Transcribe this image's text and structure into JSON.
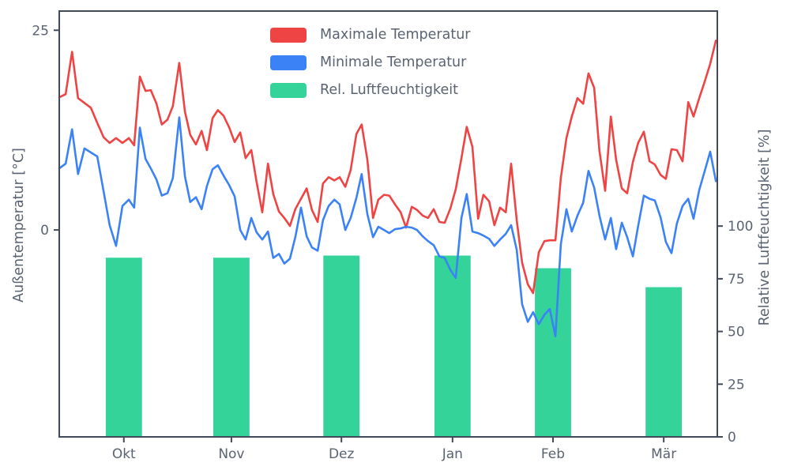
{
  "chart_data": {
    "type": "line+bar",
    "title": "",
    "x_axis": {
      "unit": "days since start of series (mid-September)",
      "tick_labels": [
        "Okt",
        "Nov",
        "Dez",
        "Jan",
        "Feb",
        "Mär"
      ],
      "tick_days": [
        18.2,
        48.5,
        79.5,
        110.8,
        139.1,
        170.3
      ],
      "range_days": [
        0,
        185.4
      ],
      "grid": false
    },
    "y_left": {
      "label": "Außentemperatur [°C]",
      "ticks": [
        0,
        25
      ],
      "range": [
        -25.9,
        27.4
      ]
    },
    "y_right": {
      "label": "Relative Luftfeuchtigkeit [%]",
      "ticks": [
        0,
        25,
        50,
        75,
        100
      ],
      "range": [
        0,
        202
      ]
    },
    "legend": [
      {
        "label": "Maximale Temperatur",
        "color": "#ef4444",
        "kind": "line"
      },
      {
        "label": "Minimale Temperatur",
        "color": "#3b82f6",
        "kind": "line"
      },
      {
        "label": "Rel. Luftfeuchtigkeit",
        "color": "#34d399",
        "kind": "bar"
      }
    ],
    "legend_position": "upper center, no frame",
    "series": {
      "days": [
        0,
        1.8,
        3.6,
        5.3,
        7.1,
        8.9,
        10.7,
        12.5,
        14.2,
        16,
        17.8,
        19.6,
        21.1,
        22.7,
        24.3,
        25.8,
        27.4,
        28.9,
        30.5,
        32,
        33.8,
        35.4,
        36.9,
        38.5,
        40.1,
        41.6,
        43.2,
        44.7,
        46.3,
        47.9,
        49.4,
        51,
        52.5,
        54.1,
        55.6,
        57.2,
        58.8,
        60.3,
        61.9,
        63.4,
        65,
        66.5,
        68.1,
        69.7,
        71.2,
        72.8,
        74.3,
        75.9,
        77.5,
        79,
        80.6,
        82.1,
        83.7,
        85.2,
        86.8,
        88.4,
        89.9,
        91.5,
        93,
        94.6,
        96.2,
        97.7,
        99.3,
        100.8,
        102.4,
        103.9,
        105.5,
        107.1,
        108.6,
        110.2,
        111.7,
        113.3,
        114.8,
        116.4,
        118,
        119.5,
        121.1,
        122.6,
        124.2,
        125.8,
        127.3,
        128.9,
        130.4,
        132,
        133.5,
        135.1,
        136.7,
        138.2,
        139.8,
        141.3,
        142.9,
        144.4,
        146,
        147.6,
        149.1,
        150.7,
        152.2,
        153.8,
        155.4,
        156.9,
        158.5,
        160,
        161.6,
        163.1,
        164.7,
        166.3,
        167.8,
        169.4,
        170.9,
        172.5,
        174,
        175.6,
        177.2,
        178.7,
        180.3,
        181.8,
        183.4,
        185
      ],
      "max_temp_c": [
        16.6,
        17.0,
        22.3,
        16.5,
        15.9,
        15.3,
        13.4,
        11.6,
        10.9,
        11.5,
        10.9,
        11.5,
        10.6,
        19.2,
        17.4,
        17.5,
        15.8,
        13.2,
        13.8,
        15.5,
        20.9,
        14.8,
        11.9,
        10.7,
        12.4,
        10.0,
        14.0,
        15.0,
        14.3,
        12.8,
        11.0,
        12.2,
        9.0,
        10.0,
        6.0,
        2.2,
        8.3,
        4.5,
        2.3,
        1.5,
        0.5,
        2.6,
        3.9,
        5.2,
        2.5,
        1.0,
        5.8,
        6.6,
        6.2,
        6.6,
        5.4,
        7.5,
        12.0,
        13.2,
        8.8,
        1.5,
        3.8,
        4.4,
        4.3,
        3.2,
        2.2,
        0.3,
        2.9,
        2.5,
        1.8,
        1.5,
        2.6,
        1.0,
        0.9,
        2.7,
        5.1,
        9.0,
        12.9,
        10.4,
        1.4,
        4.4,
        3.6,
        0.6,
        2.8,
        2.2,
        8.3,
        1.2,
        -4.1,
        -6.8,
        -7.9,
        -2.8,
        -1.4,
        -1.3,
        -1.3,
        6.5,
        11.5,
        14.2,
        16.5,
        15.8,
        19.6,
        17.8,
        9.9,
        4.9,
        14.2,
        8.8,
        5.2,
        4.6,
        8.5,
        10.9,
        12.3,
        8.6,
        8.2,
        6.9,
        6.4,
        10.1,
        10.0,
        8.6,
        16.0,
        14.2,
        16.5,
        18.5,
        20.8,
        23.7
      ],
      "min_temp_c": [
        7.7,
        8.3,
        12.6,
        7.0,
        10.2,
        9.7,
        9.2,
        4.8,
        0.6,
        -2.0,
        3.0,
        3.8,
        2.8,
        12.8,
        8.9,
        7.7,
        6.3,
        4.3,
        4.6,
        6.5,
        14.1,
        6.7,
        3.5,
        4.1,
        2.6,
        5.5,
        7.6,
        8.1,
        6.8,
        5.6,
        4.2,
        0.0,
        -1.2,
        1.5,
        -0.3,
        -1.2,
        -0.2,
        -3.5,
        -3.0,
        -4.2,
        -3.6,
        -0.9,
        2.8,
        -0.8,
        -2.2,
        -2.6,
        1.2,
        3.0,
        3.8,
        3.2,
        0.0,
        1.5,
        4.0,
        7.0,
        2.0,
        -0.9,
        0.4,
        0.0,
        -0.4,
        0.1,
        0.2,
        0.4,
        0.3,
        0.0,
        -0.8,
        -1.4,
        -1.9,
        -3.3,
        -3.5,
        -5.0,
        -6.0,
        1.5,
        4.5,
        -0.2,
        -0.4,
        -0.7,
        -1.1,
        -2.0,
        -1.2,
        -0.5,
        0.6,
        -2.5,
        -9.3,
        -11.5,
        -10.3,
        -11.8,
        -10.6,
        -9.9,
        -13.3,
        -1.8,
        2.6,
        -0.2,
        1.8,
        3.4,
        7.4,
        5.3,
        1.8,
        -1.2,
        1.5,
        -2.4,
        0.9,
        -0.9,
        -3.3,
        0.5,
        4.3,
        3.9,
        3.7,
        1.6,
        -1.5,
        -2.9,
        0.8,
        3.0,
        3.9,
        1.4,
        5.0,
        7.3,
        9.8,
        6.1
      ]
    },
    "humidity_bars": {
      "months": [
        "Okt",
        "Nov",
        "Dez",
        "Jan",
        "Feb",
        "Mär"
      ],
      "values_pct": [
        85,
        85,
        86,
        86,
        80,
        71
      ],
      "center_days": [
        18.2,
        48.5,
        79.5,
        110.8,
        139.1,
        170.3
      ],
      "bar_width_days": 10.2
    },
    "colors": {
      "max_temp": "#ef4444",
      "min_temp": "#3b82f6",
      "humidity": "#34d399",
      "axis": "#414a58",
      "text": "#5a6372",
      "background": "#ffffff"
    }
  }
}
